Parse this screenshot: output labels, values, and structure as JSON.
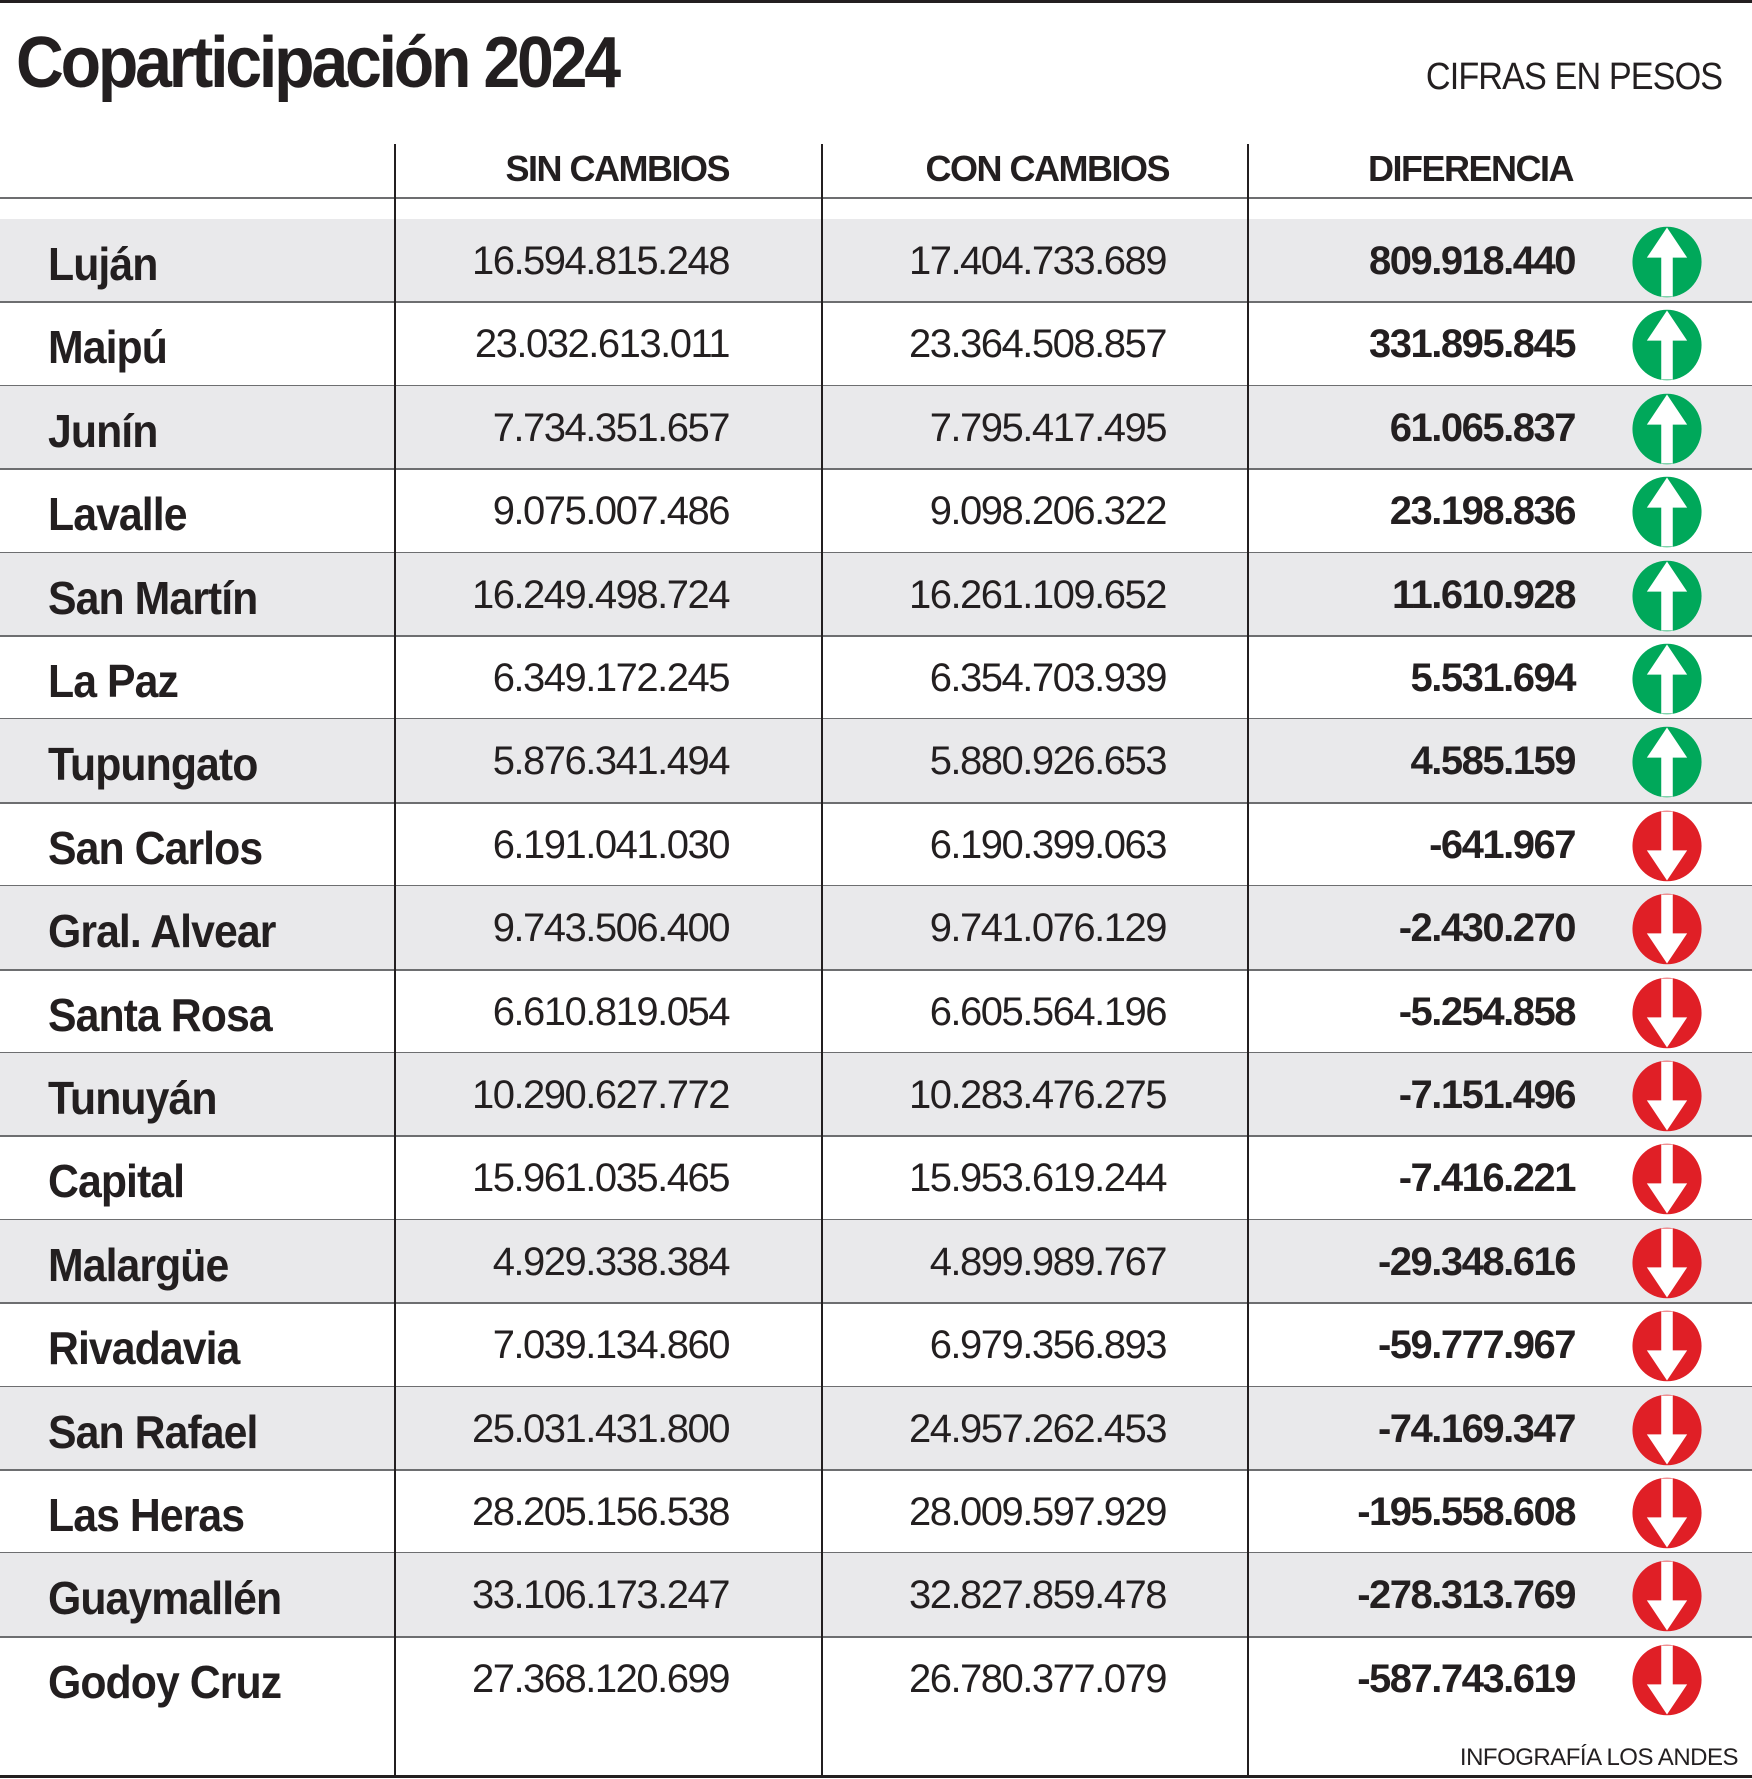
{
  "title": "Coparticipación 2024",
  "units": "CIFRAS EN PESOS",
  "credit": "INFOGRAFÍA LOS ANDES",
  "colors": {
    "up": "#00a85a",
    "down": "#e01f26",
    "row_alt": "#e9e9eb"
  },
  "chart_data": {
    "type": "table",
    "title": "Coparticipación 2024",
    "columns": [
      "",
      "SIN CAMBIOS",
      "CON CAMBIOS",
      "DIFERENCIA"
    ],
    "rows": [
      {
        "name": "Luján",
        "sin": "16.594.815.248",
        "con": "17.404.733.689",
        "dif": "809.918.440",
        "trend": "up"
      },
      {
        "name": "Maipú",
        "sin": "23.032.613.011",
        "con": "23.364.508.857",
        "dif": "331.895.845",
        "trend": "up"
      },
      {
        "name": "Junín",
        "sin": "7.734.351.657",
        "con": "7.795.417.495",
        "dif": "61.065.837",
        "trend": "up"
      },
      {
        "name": "Lavalle",
        "sin": "9.075.007.486",
        "con": "9.098.206.322",
        "dif": "23.198.836",
        "trend": "up"
      },
      {
        "name": "San Martín",
        "sin": "16.249.498.724",
        "con": "16.261.109.652",
        "dif": "11.610.928",
        "trend": "up"
      },
      {
        "name": "La Paz",
        "sin": "6.349.172.245",
        "con": "6.354.703.939",
        "dif": "5.531.694",
        "trend": "up"
      },
      {
        "name": "Tupungato",
        "sin": "5.876.341.494",
        "con": "5.880.926.653",
        "dif": "4.585.159",
        "trend": "up"
      },
      {
        "name": "San Carlos",
        "sin": "6.191.041.030",
        "con": "6.190.399.063",
        "dif": "-641.967",
        "trend": "down"
      },
      {
        "name": "Gral. Alvear",
        "sin": "9.743.506.400",
        "con": "9.741.076.129",
        "dif": "-2.430.270",
        "trend": "down"
      },
      {
        "name": "Santa Rosa",
        "sin": "6.610.819.054",
        "con": "6.605.564.196",
        "dif": "-5.254.858",
        "trend": "down"
      },
      {
        "name": "Tunuyán",
        "sin": "10.290.627.772",
        "con": "10.283.476.275",
        "dif": "-7.151.496",
        "trend": "down"
      },
      {
        "name": "Capital",
        "sin": "15.961.035.465",
        "con": "15.953.619.244",
        "dif": "-7.416.221",
        "trend": "down"
      },
      {
        "name": "Malargüe",
        "sin": "4.929.338.384",
        "con": "4.899.989.767",
        "dif": "-29.348.616",
        "trend": "down"
      },
      {
        "name": "Rivadavia",
        "sin": "7.039.134.860",
        "con": "6.979.356.893",
        "dif": "-59.777.967",
        "trend": "down"
      },
      {
        "name": "San Rafael",
        "sin": "25.031.431.800",
        "con": "24.957.262.453",
        "dif": "-74.169.347",
        "trend": "down"
      },
      {
        "name": "Las Heras",
        "sin": "28.205.156.538",
        "con": "28.009.597.929",
        "dif": "-195.558.608",
        "trend": "down"
      },
      {
        "name": "Guaymallén",
        "sin": "33.106.173.247",
        "con": "32.827.859.478",
        "dif": "-278.313.769",
        "trend": "down"
      },
      {
        "name": "Godoy Cruz",
        "sin": "27.368.120.699",
        "con": "26.780.377.079",
        "dif": "-587.743.619",
        "trend": "down"
      }
    ]
  }
}
